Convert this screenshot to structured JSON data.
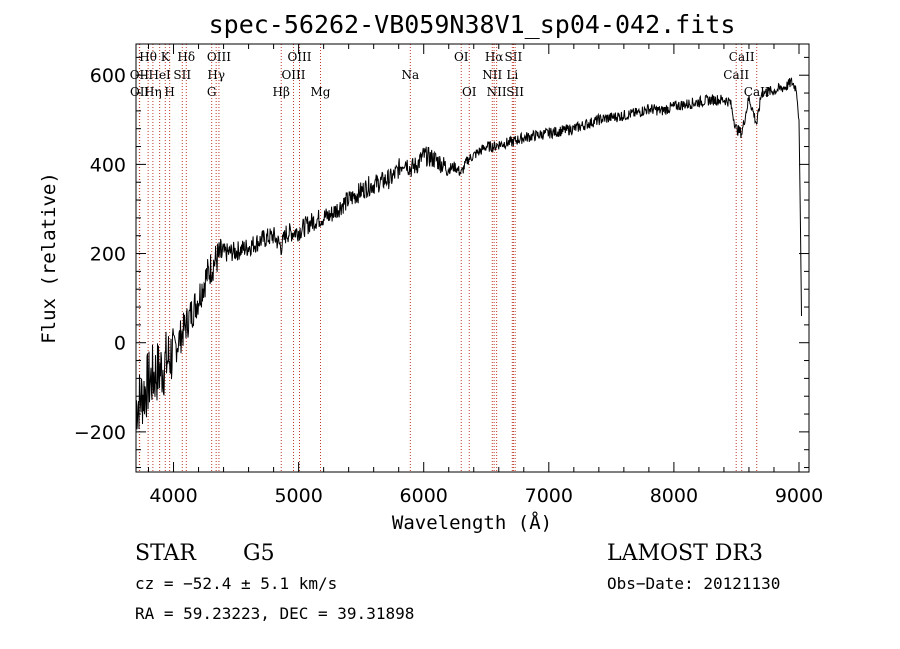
{
  "chart_data": {
    "type": "line",
    "title": "spec-56262-VB059N38V1_sp04-042.fits",
    "xlabel": "Wavelength (Å)",
    "ylabel": "Flux (relative)",
    "xlim": [
      3700,
      9080
    ],
    "ylim": [
      -290,
      670
    ],
    "xticks": [
      4000,
      5000,
      6000,
      7000,
      8000,
      9000
    ],
    "yticks": [
      -200,
      0,
      200,
      400,
      600
    ],
    "xtick_labels": [
      "4000",
      "5000",
      "6000",
      "7000",
      "8000",
      "9000"
    ],
    "ytick_labels": [
      "−200",
      "0",
      "200",
      "400",
      "600"
    ],
    "series": [
      {
        "name": "flux",
        "x": [
          3700,
          3750,
          3800,
          3850,
          3900,
          3950,
          4000,
          4050,
          4100,
          4150,
          4200,
          4250,
          4300,
          4350,
          4400,
          4500,
          4600,
          4700,
          4800,
          4861,
          4900,
          5000,
          5100,
          5175,
          5250,
          5350,
          5450,
          5550,
          5650,
          5750,
          5850,
          5893,
          5950,
          6000,
          6100,
          6200,
          6250,
          6300,
          6350,
          6400,
          6500,
          6563,
          6600,
          6700,
          6800,
          6900,
          7000,
          7100,
          7200,
          7300,
          7400,
          7500,
          7600,
          7700,
          7800,
          7900,
          8000,
          8100,
          8200,
          8300,
          8400,
          8450,
          8498,
          8542,
          8600,
          8662,
          8700,
          8800,
          8850,
          8900,
          8940,
          8980,
          9000,
          9010,
          9020
        ],
        "y": [
          -140,
          -120,
          -90,
          -70,
          -60,
          -40,
          -20,
          10,
          40,
          70,
          100,
          140,
          170,
          190,
          200,
          205,
          215,
          230,
          240,
          215,
          245,
          250,
          270,
          280,
          285,
          310,
          330,
          350,
          360,
          370,
          410,
          390,
          400,
          420,
          410,
          390,
          395,
          380,
          410,
          420,
          440,
          440,
          445,
          450,
          460,
          465,
          470,
          475,
          480,
          490,
          500,
          505,
          510,
          515,
          525,
          520,
          530,
          535,
          540,
          545,
          545,
          540,
          480,
          470,
          550,
          490,
          560,
          565,
          570,
          575,
          585,
          570,
          500,
          300,
          60
        ]
      }
    ],
    "lines_top": [
      {
        "label": "Hθ",
        "x": 3797
      },
      {
        "label": "K",
        "x": 3934
      },
      {
        "label": "Hδ",
        "x": 4102
      },
      {
        "label": "OIII",
        "x": 4363
      },
      {
        "label": "OIII",
        "x": 5007
      },
      {
        "label": "OI",
        "x": 6300
      },
      {
        "label": "Hα",
        "x": 6563
      },
      {
        "label": "SII",
        "x": 6717
      },
      {
        "label": "CaII",
        "x": 8542
      }
    ],
    "lines_mid": [
      {
        "label": "OII",
        "x": 3727
      },
      {
        "label": "HeI",
        "x": 3889
      },
      {
        "label": "SII",
        "x": 4070
      },
      {
        "label": "Hγ",
        "x": 4341
      },
      {
        "label": "OIII",
        "x": 4959
      },
      {
        "label": "Na",
        "x": 5893
      },
      {
        "label": "NII",
        "x": 6548
      },
      {
        "label": "Li",
        "x": 6708
      },
      {
        "label": "CaII",
        "x": 8498
      }
    ],
    "lines_low": [
      {
        "label": "OII",
        "x": 3729
      },
      {
        "label": "Hη",
        "x": 3835
      },
      {
        "label": "H",
        "x": 3969
      },
      {
        "label": "G",
        "x": 4305
      },
      {
        "label": "Hβ",
        "x": 4861
      },
      {
        "label": "Mg",
        "x": 5175
      },
      {
        "label": "OI",
        "x": 6364
      },
      {
        "label": "NII",
        "x": 6583
      },
      {
        "label": "SII",
        "x": 6731
      },
      {
        "label": "CaII",
        "x": 8662
      }
    ]
  },
  "info": {
    "class": "STAR",
    "subclass": "G5",
    "survey": "LAMOST DR3",
    "cz": "cz = −52.4 ± 5.1 km/s",
    "obs_date": "Obs−Date: 20121130",
    "radec": "RA =  59.23223, DEC =  39.31898"
  }
}
